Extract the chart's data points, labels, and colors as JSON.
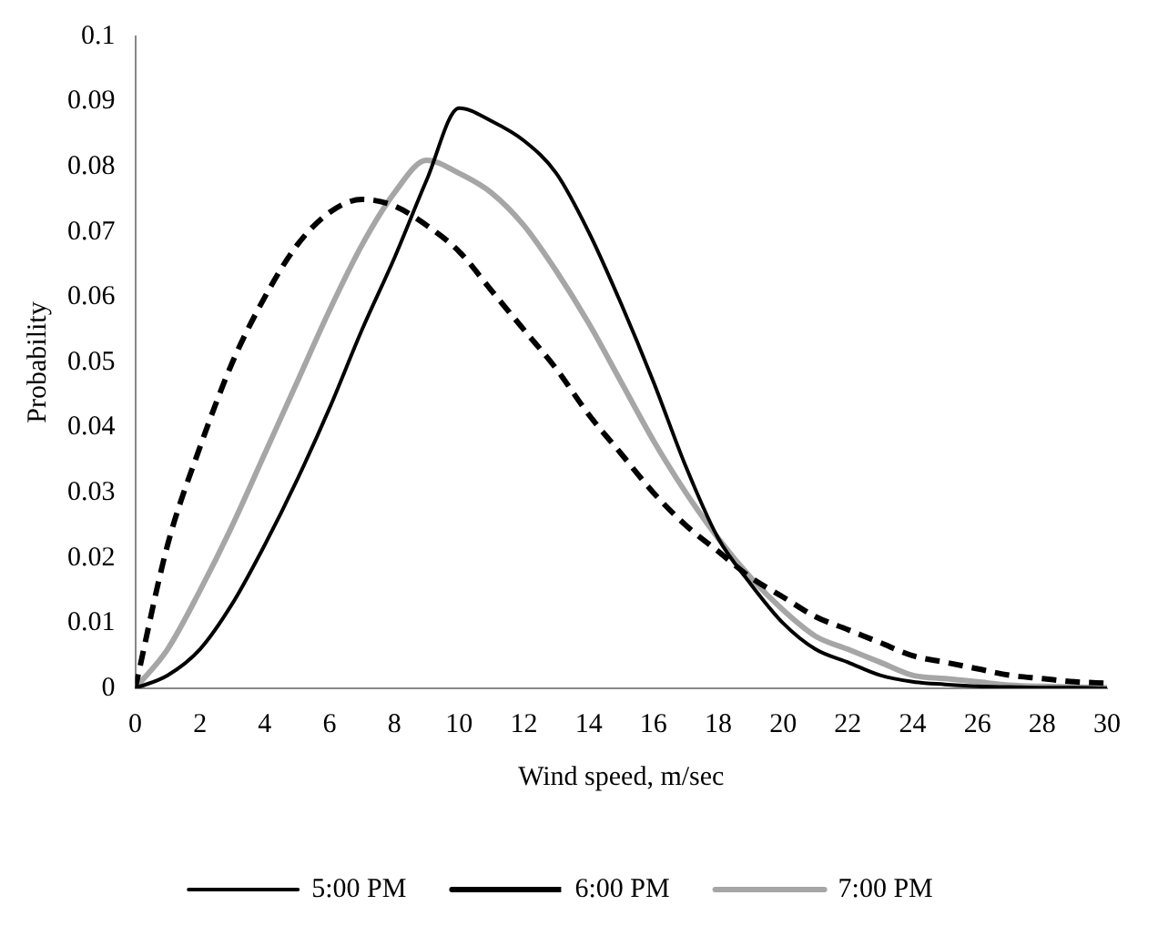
{
  "chart_data": {
    "type": "line",
    "xlabel": "Wind speed, m/sec",
    "ylabel": "Probability",
    "x": [
      0,
      1,
      2,
      3,
      4,
      5,
      6,
      7,
      8,
      9,
      10,
      11,
      12,
      13,
      14,
      15,
      16,
      17,
      18,
      19,
      20,
      21,
      22,
      23,
      24,
      25,
      26,
      27,
      28,
      29,
      30
    ],
    "series": [
      {
        "name": "5:00 PM",
        "color": "#000000",
        "line_style": "solid",
        "values": [
          0,
          0.002,
          0.006,
          0.013,
          0.022,
          0.032,
          0.043,
          0.055,
          0.066,
          0.078,
          0.089,
          0.087,
          0.084,
          0.079,
          0.07,
          0.059,
          0.047,
          0.034,
          0.023,
          0.016,
          0.01,
          0.006,
          0.004,
          0.002,
          0.001,
          0.0006,
          0.0003,
          0.0002,
          0.0001,
          0.0001,
          0
        ]
      },
      {
        "name": "6:00 PM",
        "color": "#000000",
        "line_style": "dashed",
        "values": [
          0,
          0.022,
          0.037,
          0.05,
          0.06,
          0.068,
          0.073,
          0.075,
          0.074,
          0.071,
          0.067,
          0.061,
          0.055,
          0.049,
          0.042,
          0.036,
          0.03,
          0.025,
          0.021,
          0.017,
          0.014,
          0.011,
          0.009,
          0.007,
          0.005,
          0.004,
          0.003,
          0.002,
          0.0015,
          0.001,
          0.0008
        ]
      },
      {
        "name": "7:00 PM",
        "color": "#a6a6a6",
        "line_style": "solid",
        "values": [
          0,
          0.006,
          0.015,
          0.025,
          0.036,
          0.047,
          0.058,
          0.068,
          0.076,
          0.081,
          0.079,
          0.076,
          0.071,
          0.064,
          0.056,
          0.047,
          0.038,
          0.03,
          0.023,
          0.017,
          0.012,
          0.008,
          0.006,
          0.004,
          0.002,
          0.0015,
          0.001,
          0.0005,
          0.0003,
          0.0002,
          0.0001
        ]
      }
    ],
    "xlim": [
      0,
      30
    ],
    "xticks": [
      0,
      2,
      4,
      6,
      8,
      10,
      12,
      14,
      16,
      18,
      20,
      22,
      24,
      26,
      28,
      30
    ],
    "ylim": [
      0,
      0.1
    ],
    "yticks": [
      0,
      0.01,
      0.02,
      0.03,
      0.04,
      0.05,
      0.06,
      0.07,
      0.08,
      0.09,
      0.1
    ],
    "grid": false,
    "legend": "bottom",
    "marker": "none"
  }
}
